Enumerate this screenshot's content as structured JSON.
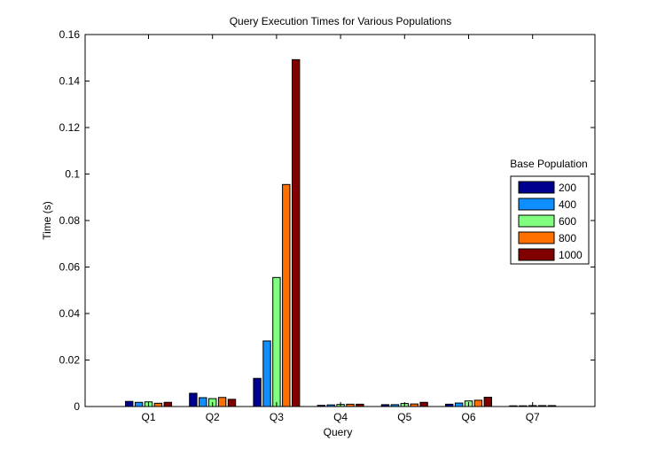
{
  "chart_data": {
    "type": "bar",
    "title": "Query Execution Times for Various Populations",
    "xlabel": "Query",
    "ylabel": "Time (s)",
    "ylim": [
      0,
      0.16
    ],
    "yticks": [
      0,
      0.02,
      0.04,
      0.06,
      0.08,
      0.1,
      0.12,
      0.14,
      0.16
    ],
    "ytick_labels": [
      "0",
      "0.02",
      "0.04",
      "0.06",
      "0.08",
      "0.1",
      "0.12",
      "0.14",
      "0.16"
    ],
    "categories": [
      "Q1",
      "Q2",
      "Q3",
      "Q4",
      "Q5",
      "Q6",
      "Q7"
    ],
    "legend_title": "Base Population",
    "legend_position": "right",
    "grid": false,
    "series": [
      {
        "name": "200",
        "color": "#00008f",
        "values": [
          0.0022,
          0.0057,
          0.0121,
          0.0005,
          0.0008,
          0.001,
          0.0003
        ]
      },
      {
        "name": "400",
        "color": "#0f8fff",
        "values": [
          0.0018,
          0.0038,
          0.0282,
          0.0007,
          0.0008,
          0.0015,
          0.0003
        ]
      },
      {
        "name": "600",
        "color": "#80ff80",
        "values": [
          0.002,
          0.0034,
          0.0555,
          0.0009,
          0.0013,
          0.0024,
          0.0004
        ]
      },
      {
        "name": "800",
        "color": "#ff7000",
        "values": [
          0.0014,
          0.0039,
          0.0955,
          0.001,
          0.0011,
          0.0027,
          0.0004
        ]
      },
      {
        "name": "1000",
        "color": "#800000",
        "values": [
          0.0018,
          0.0031,
          0.1492,
          0.001,
          0.0018,
          0.004,
          0.0004
        ]
      }
    ]
  }
}
